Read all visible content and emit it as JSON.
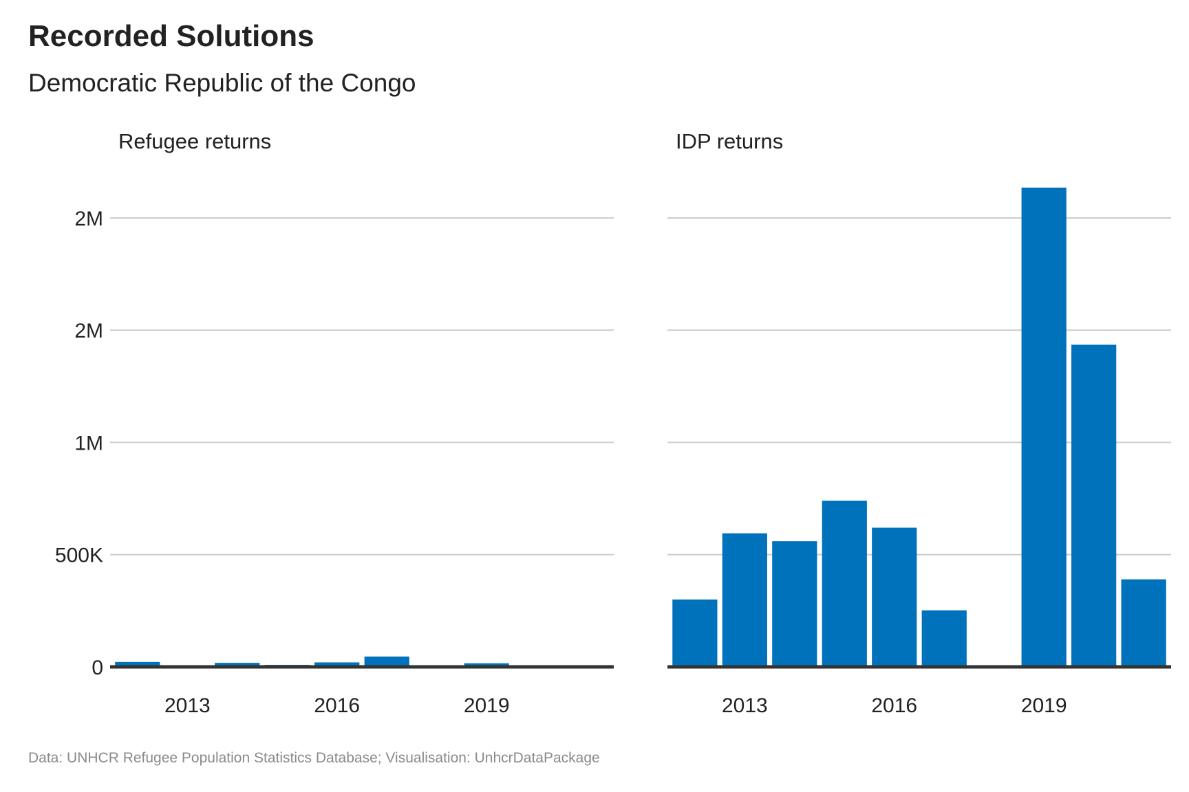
{
  "title": "Recorded Solutions",
  "subtitle": "Democratic Republic of the Congo",
  "caption": "Data: UNHCR Refugee Population Statistics Database; Visualisation: UnhcrDataPackage",
  "colors": {
    "bar": "#0072BC",
    "grid": "#cccccc",
    "baseline": "#333333"
  },
  "chart_data": [
    {
      "type": "bar",
      "facet_title": "Refugee returns",
      "x": [
        2012,
        2013,
        2014,
        2015,
        2016,
        2017,
        2018,
        2019,
        2020,
        2021
      ],
      "values": [
        22000,
        3000,
        18000,
        9000,
        20000,
        46000,
        3000,
        16000,
        7000,
        3000
      ],
      "x_tick_labels": [
        "2013",
        "2016",
        "2019"
      ],
      "y_ticks": [
        0,
        500000,
        1000000,
        1500000,
        2000000
      ],
      "y_tick_labels": [
        "0",
        "500K",
        "1M",
        "2M",
        "2M"
      ],
      "ylim": [
        0,
        2150000
      ],
      "grid": "horizontal"
    },
    {
      "type": "bar",
      "facet_title": "IDP returns",
      "x": [
        2012,
        2013,
        2014,
        2015,
        2016,
        2017,
        2018,
        2019,
        2020,
        2021
      ],
      "values": [
        300000,
        595000,
        560000,
        740000,
        620000,
        252000,
        0,
        2135000,
        1435000,
        390000
      ],
      "x_tick_labels": [
        "2013",
        "2016",
        "2019"
      ],
      "y_ticks": [
        0,
        500000,
        1000000,
        1500000,
        2000000
      ],
      "ylim": [
        0,
        2150000
      ],
      "grid": "horizontal"
    }
  ]
}
